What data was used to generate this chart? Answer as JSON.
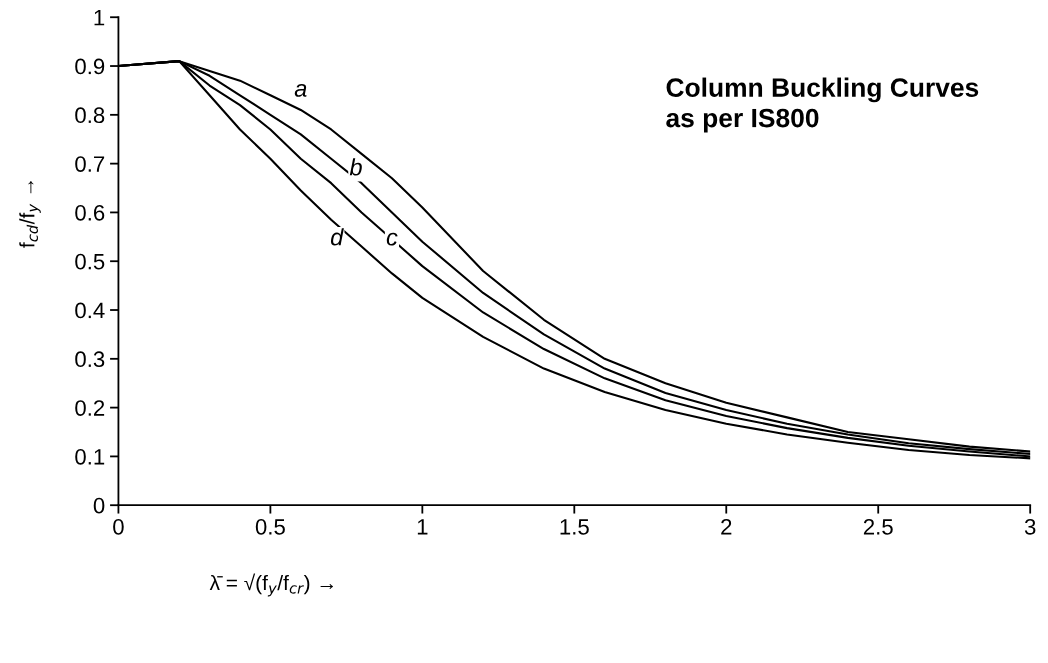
{
  "chart_data": {
    "type": "line",
    "title": "Column Buckling Curves\nas per IS800",
    "xlabel": "λ̄ = √(f$_{y}$/f$_{cr}$) →",
    "ylabel": "f$_{cd}$/f$_{y}$ →",
    "x": [
      0,
      0.2,
      0.3,
      0.4,
      0.5,
      0.6,
      0.7,
      0.8,
      0.9,
      1.0,
      1.2,
      1.4,
      1.6,
      1.8,
      2.0,
      2.2,
      2.4,
      2.6,
      2.8,
      3.0
    ],
    "series": [
      {
        "name": "a",
        "color": "#000000",
        "values": [
          0.9,
          0.91,
          0.89,
          0.87,
          0.84,
          0.81,
          0.77,
          0.72,
          0.67,
          0.61,
          0.48,
          0.38,
          0.3,
          0.25,
          0.21,
          0.18,
          0.15,
          0.135,
          0.12,
          0.11
        ]
      },
      {
        "name": "b",
        "color": "#000000",
        "values": [
          0.9,
          0.91,
          0.88,
          0.84,
          0.8,
          0.76,
          0.71,
          0.66,
          0.6,
          0.54,
          0.435,
          0.35,
          0.28,
          0.23,
          0.195,
          0.167,
          0.145,
          0.127,
          0.115,
          0.105
        ]
      },
      {
        "name": "c",
        "color": "#000000",
        "values": [
          0.9,
          0.91,
          0.86,
          0.82,
          0.77,
          0.71,
          0.66,
          0.6,
          0.545,
          0.49,
          0.395,
          0.32,
          0.26,
          0.215,
          0.183,
          0.158,
          0.138,
          0.122,
          0.11,
          0.1
        ]
      },
      {
        "name": "d",
        "color": "#000000",
        "values": [
          0.9,
          0.91,
          0.84,
          0.77,
          0.71,
          0.645,
          0.585,
          0.53,
          0.475,
          0.425,
          0.345,
          0.28,
          0.232,
          0.195,
          0.167,
          0.145,
          0.128,
          0.113,
          0.103,
          0.096
        ]
      }
    ],
    "xlim": [
      0,
      3
    ],
    "ylim": [
      0,
      1
    ],
    "xticks": [
      0,
      0.5,
      1,
      1.5,
      2,
      2.5,
      3
    ],
    "yticks": [
      0,
      0.1,
      0.2,
      0.3,
      0.4,
      0.5,
      0.6,
      0.7,
      0.8,
      0.9,
      1
    ],
    "grid": false,
    "marker": "none",
    "line_style": "solid"
  }
}
